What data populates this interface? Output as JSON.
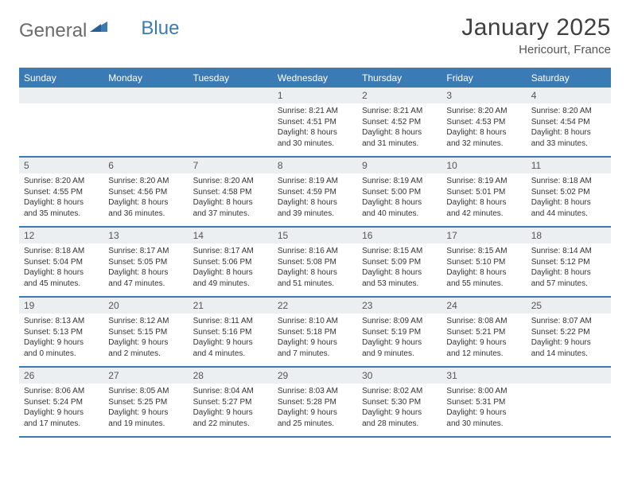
{
  "logo": {
    "part1": "General",
    "part2": "Blue"
  },
  "title": "January 2025",
  "location": "Hericourt, France",
  "colors": {
    "header_bg": "#3a7ab5",
    "header_text": "#ffffff",
    "daynum_bg": "#eceff1",
    "border": "#3a7ab5",
    "logo_gray": "#6b6b6b",
    "logo_blue": "#3a7ab5"
  },
  "weekdays": [
    "Sunday",
    "Monday",
    "Tuesday",
    "Wednesday",
    "Thursday",
    "Friday",
    "Saturday"
  ],
  "weeks": [
    [
      {
        "n": "",
        "sunrise": "",
        "sunset": "",
        "daylight": ""
      },
      {
        "n": "",
        "sunrise": "",
        "sunset": "",
        "daylight": ""
      },
      {
        "n": "",
        "sunrise": "",
        "sunset": "",
        "daylight": ""
      },
      {
        "n": "1",
        "sunrise": "Sunrise: 8:21 AM",
        "sunset": "Sunset: 4:51 PM",
        "daylight": "Daylight: 8 hours and 30 minutes."
      },
      {
        "n": "2",
        "sunrise": "Sunrise: 8:21 AM",
        "sunset": "Sunset: 4:52 PM",
        "daylight": "Daylight: 8 hours and 31 minutes."
      },
      {
        "n": "3",
        "sunrise": "Sunrise: 8:20 AM",
        "sunset": "Sunset: 4:53 PM",
        "daylight": "Daylight: 8 hours and 32 minutes."
      },
      {
        "n": "4",
        "sunrise": "Sunrise: 8:20 AM",
        "sunset": "Sunset: 4:54 PM",
        "daylight": "Daylight: 8 hours and 33 minutes."
      }
    ],
    [
      {
        "n": "5",
        "sunrise": "Sunrise: 8:20 AM",
        "sunset": "Sunset: 4:55 PM",
        "daylight": "Daylight: 8 hours and 35 minutes."
      },
      {
        "n": "6",
        "sunrise": "Sunrise: 8:20 AM",
        "sunset": "Sunset: 4:56 PM",
        "daylight": "Daylight: 8 hours and 36 minutes."
      },
      {
        "n": "7",
        "sunrise": "Sunrise: 8:20 AM",
        "sunset": "Sunset: 4:58 PM",
        "daylight": "Daylight: 8 hours and 37 minutes."
      },
      {
        "n": "8",
        "sunrise": "Sunrise: 8:19 AM",
        "sunset": "Sunset: 4:59 PM",
        "daylight": "Daylight: 8 hours and 39 minutes."
      },
      {
        "n": "9",
        "sunrise": "Sunrise: 8:19 AM",
        "sunset": "Sunset: 5:00 PM",
        "daylight": "Daylight: 8 hours and 40 minutes."
      },
      {
        "n": "10",
        "sunrise": "Sunrise: 8:19 AM",
        "sunset": "Sunset: 5:01 PM",
        "daylight": "Daylight: 8 hours and 42 minutes."
      },
      {
        "n": "11",
        "sunrise": "Sunrise: 8:18 AM",
        "sunset": "Sunset: 5:02 PM",
        "daylight": "Daylight: 8 hours and 44 minutes."
      }
    ],
    [
      {
        "n": "12",
        "sunrise": "Sunrise: 8:18 AM",
        "sunset": "Sunset: 5:04 PM",
        "daylight": "Daylight: 8 hours and 45 minutes."
      },
      {
        "n": "13",
        "sunrise": "Sunrise: 8:17 AM",
        "sunset": "Sunset: 5:05 PM",
        "daylight": "Daylight: 8 hours and 47 minutes."
      },
      {
        "n": "14",
        "sunrise": "Sunrise: 8:17 AM",
        "sunset": "Sunset: 5:06 PM",
        "daylight": "Daylight: 8 hours and 49 minutes."
      },
      {
        "n": "15",
        "sunrise": "Sunrise: 8:16 AM",
        "sunset": "Sunset: 5:08 PM",
        "daylight": "Daylight: 8 hours and 51 minutes."
      },
      {
        "n": "16",
        "sunrise": "Sunrise: 8:15 AM",
        "sunset": "Sunset: 5:09 PM",
        "daylight": "Daylight: 8 hours and 53 minutes."
      },
      {
        "n": "17",
        "sunrise": "Sunrise: 8:15 AM",
        "sunset": "Sunset: 5:10 PM",
        "daylight": "Daylight: 8 hours and 55 minutes."
      },
      {
        "n": "18",
        "sunrise": "Sunrise: 8:14 AM",
        "sunset": "Sunset: 5:12 PM",
        "daylight": "Daylight: 8 hours and 57 minutes."
      }
    ],
    [
      {
        "n": "19",
        "sunrise": "Sunrise: 8:13 AM",
        "sunset": "Sunset: 5:13 PM",
        "daylight": "Daylight: 9 hours and 0 minutes."
      },
      {
        "n": "20",
        "sunrise": "Sunrise: 8:12 AM",
        "sunset": "Sunset: 5:15 PM",
        "daylight": "Daylight: 9 hours and 2 minutes."
      },
      {
        "n": "21",
        "sunrise": "Sunrise: 8:11 AM",
        "sunset": "Sunset: 5:16 PM",
        "daylight": "Daylight: 9 hours and 4 minutes."
      },
      {
        "n": "22",
        "sunrise": "Sunrise: 8:10 AM",
        "sunset": "Sunset: 5:18 PM",
        "daylight": "Daylight: 9 hours and 7 minutes."
      },
      {
        "n": "23",
        "sunrise": "Sunrise: 8:09 AM",
        "sunset": "Sunset: 5:19 PM",
        "daylight": "Daylight: 9 hours and 9 minutes."
      },
      {
        "n": "24",
        "sunrise": "Sunrise: 8:08 AM",
        "sunset": "Sunset: 5:21 PM",
        "daylight": "Daylight: 9 hours and 12 minutes."
      },
      {
        "n": "25",
        "sunrise": "Sunrise: 8:07 AM",
        "sunset": "Sunset: 5:22 PM",
        "daylight": "Daylight: 9 hours and 14 minutes."
      }
    ],
    [
      {
        "n": "26",
        "sunrise": "Sunrise: 8:06 AM",
        "sunset": "Sunset: 5:24 PM",
        "daylight": "Daylight: 9 hours and 17 minutes."
      },
      {
        "n": "27",
        "sunrise": "Sunrise: 8:05 AM",
        "sunset": "Sunset: 5:25 PM",
        "daylight": "Daylight: 9 hours and 19 minutes."
      },
      {
        "n": "28",
        "sunrise": "Sunrise: 8:04 AM",
        "sunset": "Sunset: 5:27 PM",
        "daylight": "Daylight: 9 hours and 22 minutes."
      },
      {
        "n": "29",
        "sunrise": "Sunrise: 8:03 AM",
        "sunset": "Sunset: 5:28 PM",
        "daylight": "Daylight: 9 hours and 25 minutes."
      },
      {
        "n": "30",
        "sunrise": "Sunrise: 8:02 AM",
        "sunset": "Sunset: 5:30 PM",
        "daylight": "Daylight: 9 hours and 28 minutes."
      },
      {
        "n": "31",
        "sunrise": "Sunrise: 8:00 AM",
        "sunset": "Sunset: 5:31 PM",
        "daylight": "Daylight: 9 hours and 30 minutes."
      },
      {
        "n": "",
        "sunrise": "",
        "sunset": "",
        "daylight": ""
      }
    ]
  ]
}
